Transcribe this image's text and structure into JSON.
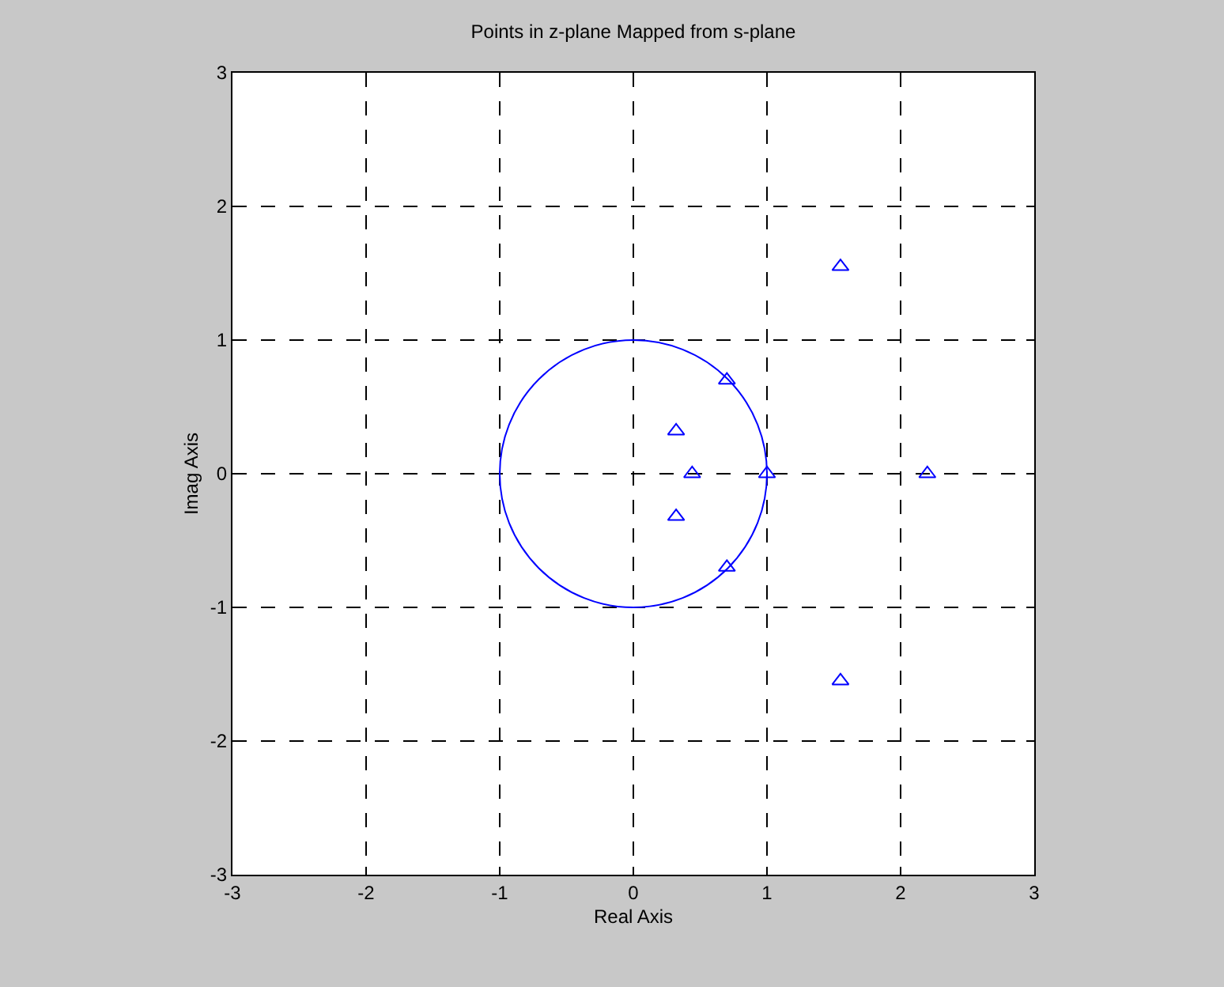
{
  "chart_data": {
    "type": "scatter",
    "title": "Points in z-plane Mapped from s-plane",
    "xlabel": "Real Axis",
    "ylabel": "Imag Axis",
    "xlim": [
      -3,
      3
    ],
    "ylim": [
      -3,
      3
    ],
    "xticks": [
      -3,
      -2,
      -1,
      0,
      1,
      2,
      3
    ],
    "yticks": [
      -3,
      -2,
      -1,
      0,
      1,
      2,
      3
    ],
    "grid": true,
    "series": [
      {
        "type": "scatter",
        "color": "#0000ff",
        "marker": "triangle",
        "x": [
          1.55,
          0.7,
          0.32,
          0.44,
          1,
          2.2,
          0.32,
          0.7,
          1.55
        ],
        "values": [
          1.55,
          0.7,
          0.32,
          0,
          0,
          0,
          -0.32,
          -0.7,
          -1.55
        ]
      }
    ]
  }
}
